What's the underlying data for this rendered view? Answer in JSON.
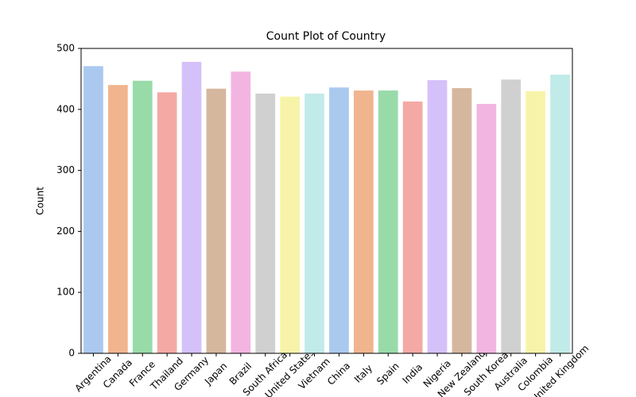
{
  "chart_data": {
    "type": "bar",
    "title": "Count Plot of Country",
    "y_label": "Count",
    "categories": [
      "Argentina",
      "Canada",
      "France",
      "Thailand",
      "Germany",
      "Japan",
      "Brazil",
      "South Africa",
      "United States",
      "Vietnam",
      "China",
      "Italy",
      "Spain",
      "India",
      "Nigeria",
      "New Zealand",
      "South Korea",
      "Australia",
      "Colombia",
      "United Kingdom"
    ],
    "values": [
      471,
      440,
      447,
      428,
      478,
      434,
      462,
      426,
      421,
      426,
      436,
      431,
      431,
      413,
      448,
      435,
      409,
      449,
      430,
      457
    ],
    "colors": [
      "#abc9ef",
      "#f0b58f",
      "#98dba9",
      "#f4a9a4",
      "#d5c1f9",
      "#d5b79e",
      "#f2b5e1",
      "#d0d0d0",
      "#f7f4a9",
      "#c1ebe8",
      "#abc9ef",
      "#f0b58f",
      "#98dba9",
      "#f4a9a4",
      "#d5c1f9",
      "#d5b79e",
      "#f2b5e1",
      "#d0d0d0",
      "#f7f4a9",
      "#c1ebe8"
    ],
    "ylim": [
      0,
      500
    ],
    "yticks": [
      0,
      100,
      200,
      300,
      400,
      500
    ],
    "grid": false
  }
}
